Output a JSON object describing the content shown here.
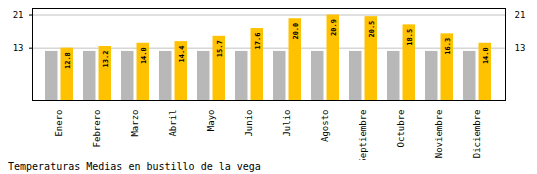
{
  "chart_data": {
    "type": "bar",
    "title": "Temperaturas Medias en bustillo de la vega",
    "categories": [
      "Enero",
      "Febrero",
      "Marzo",
      "Abril",
      "Mayo",
      "Junio",
      "Julio",
      "Agosto",
      "Septiembre",
      "Octubre",
      "Noviembre",
      "Diciembre"
    ],
    "series": [
      {
        "color": "#B8B8B8",
        "values": [
          12.0,
          12.0,
          12.0,
          12.0,
          12.0,
          12.0,
          12.0,
          12.0,
          12.0,
          12.0,
          12.0,
          12.0
        ]
      },
      {
        "color": "#FFC200",
        "values": [
          12.8,
          13.2,
          14.0,
          14.4,
          15.7,
          17.6,
          20.0,
          20.9,
          20.5,
          18.5,
          16.3,
          14.0
        ],
        "value_labels": [
          "12.8",
          "13.2",
          "14.0",
          "14.4",
          "15.7",
          "17.6",
          "20.0",
          "20.9",
          "20.5",
          "18.5",
          "16.3",
          "14.0"
        ],
        "data_labels": true
      }
    ],
    "ylim": [
      0,
      22.5
    ],
    "yticks": [
      12.8,
      20.9
    ],
    "grid": true
  }
}
